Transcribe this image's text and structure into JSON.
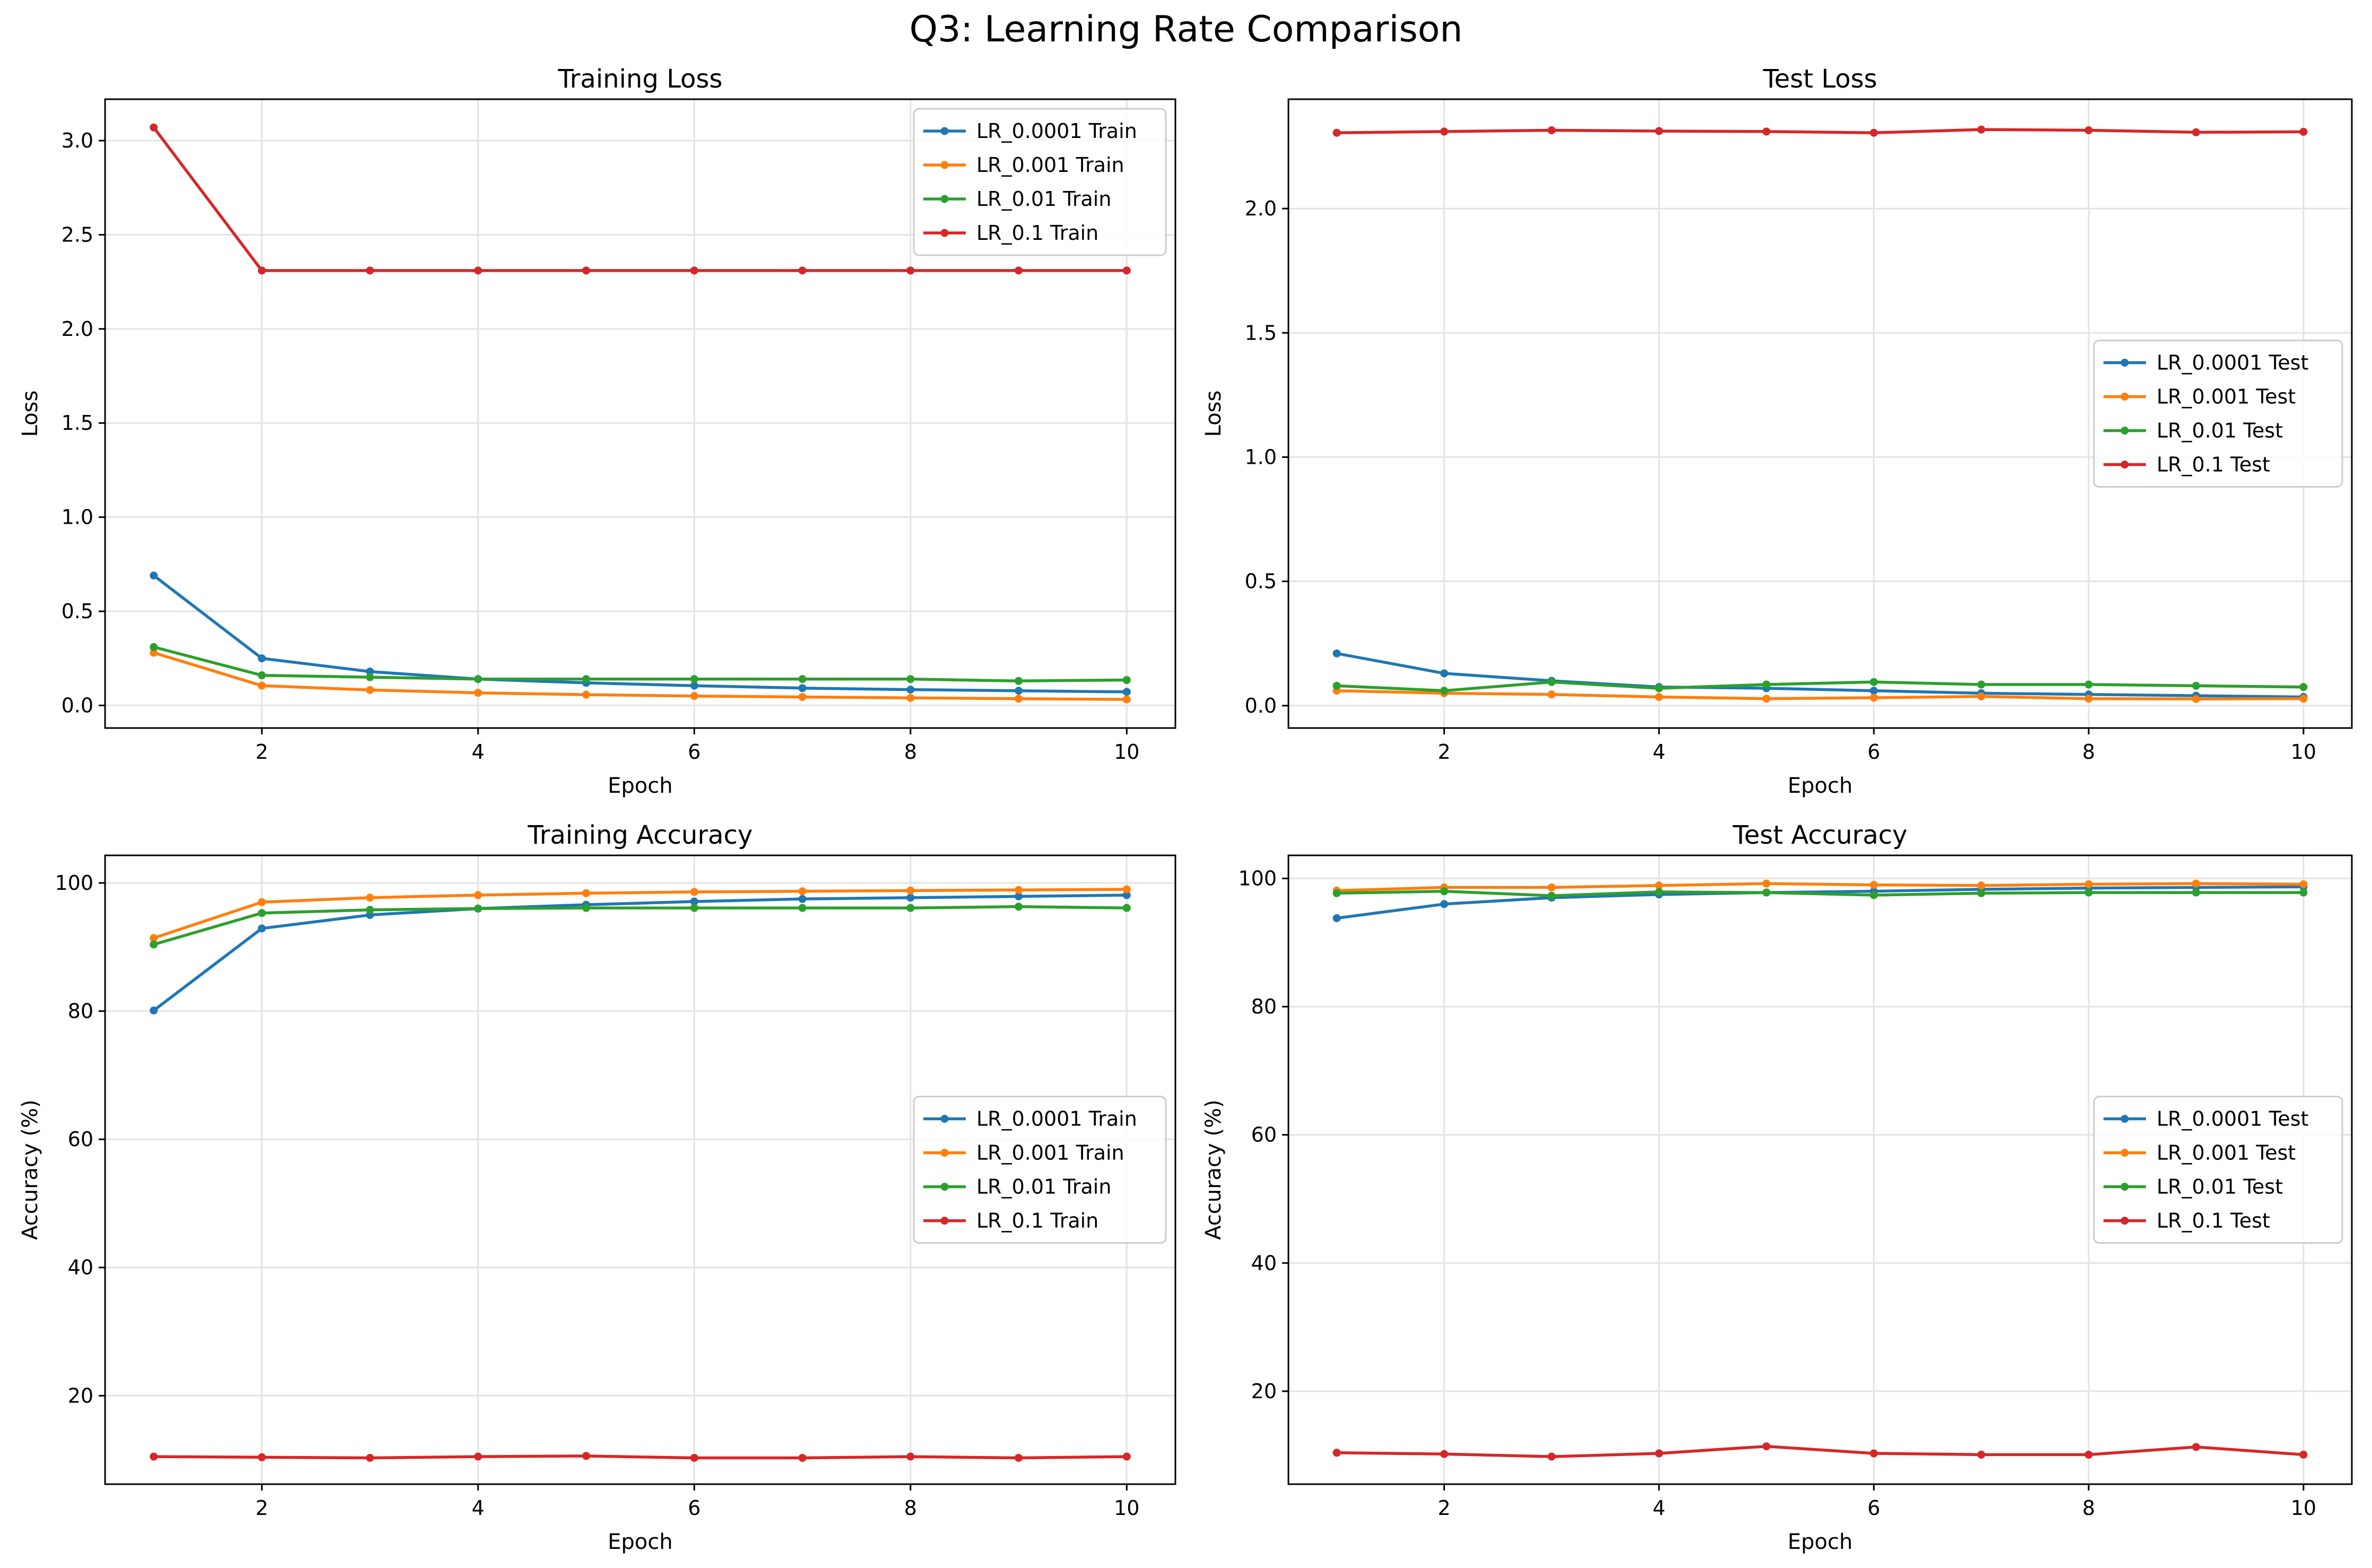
{
  "figure": {
    "title": "Q3: Learning Rate Comparison"
  },
  "colors": {
    "blue": "#1f77b4",
    "orange": "#ff7f0e",
    "green": "#2ca02c",
    "red": "#d62728"
  },
  "chart_data": [
    {
      "type": "line",
      "title": "Training Loss",
      "xlabel": "Epoch",
      "ylabel": "Loss",
      "xlim": [
        0.55,
        10.45
      ],
      "ylim": [
        -0.12,
        3.22
      ],
      "xticks": [
        2,
        4,
        6,
        8,
        10
      ],
      "yticks": [
        0.0,
        0.5,
        1.0,
        1.5,
        2.0,
        2.5,
        3.0
      ],
      "ytick_labels": [
        "0.0",
        "0.5",
        "1.0",
        "1.5",
        "2.0",
        "2.5",
        "3.0"
      ],
      "grid": true,
      "legend_position": "top-right",
      "x": [
        1,
        2,
        3,
        4,
        5,
        6,
        7,
        8,
        9,
        10
      ],
      "series": [
        {
          "name": "LR_0.0001 Train",
          "color": "#1f77b4",
          "values": [
            0.69,
            0.25,
            0.18,
            0.14,
            0.12,
            0.105,
            0.092,
            0.084,
            0.078,
            0.072
          ]
        },
        {
          "name": "LR_0.001 Train",
          "color": "#ff7f0e",
          "values": [
            0.28,
            0.105,
            0.082,
            0.067,
            0.057,
            0.05,
            0.045,
            0.04,
            0.036,
            0.032
          ]
        },
        {
          "name": "LR_0.01 Train",
          "color": "#2ca02c",
          "values": [
            0.31,
            0.16,
            0.15,
            0.14,
            0.14,
            0.14,
            0.14,
            0.14,
            0.13,
            0.135
          ]
        },
        {
          "name": "LR_0.1 Train",
          "color": "#d62728",
          "values": [
            3.07,
            2.31,
            2.31,
            2.31,
            2.31,
            2.31,
            2.31,
            2.31,
            2.31,
            2.31
          ]
        }
      ]
    },
    {
      "type": "line",
      "title": "Test Loss",
      "xlabel": "Epoch",
      "ylabel": "Loss",
      "xlim": [
        0.55,
        10.45
      ],
      "ylim": [
        -0.09,
        2.44
      ],
      "xticks": [
        2,
        4,
        6,
        8,
        10
      ],
      "yticks": [
        0.0,
        0.5,
        1.0,
        1.5,
        2.0
      ],
      "ytick_labels": [
        "0.0",
        "0.5",
        "1.0",
        "1.5",
        "2.0"
      ],
      "grid": true,
      "legend_position": "center-right",
      "x": [
        1,
        2,
        3,
        4,
        5,
        6,
        7,
        8,
        9,
        10
      ],
      "series": [
        {
          "name": "LR_0.0001 Test",
          "color": "#1f77b4",
          "values": [
            0.21,
            0.13,
            0.1,
            0.075,
            0.07,
            0.06,
            0.05,
            0.045,
            0.04,
            0.035
          ]
        },
        {
          "name": "LR_0.001 Test",
          "color": "#ff7f0e",
          "values": [
            0.06,
            0.05,
            0.045,
            0.035,
            0.028,
            0.032,
            0.037,
            0.028,
            0.027,
            0.028
          ]
        },
        {
          "name": "LR_0.01 Test",
          "color": "#2ca02c",
          "values": [
            0.08,
            0.06,
            0.095,
            0.07,
            0.085,
            0.095,
            0.085,
            0.085,
            0.08,
            0.075
          ]
        },
        {
          "name": "LR_0.1 Test",
          "color": "#d62728",
          "values": [
            2.305,
            2.31,
            2.315,
            2.312,
            2.31,
            2.305,
            2.318,
            2.315,
            2.307,
            2.309
          ]
        }
      ]
    },
    {
      "type": "line",
      "title": "Training Accuracy",
      "xlabel": "Epoch",
      "ylabel": "Accuracy (%)",
      "xlim": [
        0.55,
        10.45
      ],
      "ylim": [
        6.2,
        104.3
      ],
      "xticks": [
        2,
        4,
        6,
        8,
        10
      ],
      "yticks": [
        20,
        40,
        60,
        80,
        100
      ],
      "ytick_labels": [
        "20",
        "40",
        "60",
        "80",
        "100"
      ],
      "grid": true,
      "legend_position": "center-right",
      "x": [
        1,
        2,
        3,
        4,
        5,
        6,
        7,
        8,
        9,
        10
      ],
      "series": [
        {
          "name": "LR_0.0001 Train",
          "color": "#1f77b4",
          "values": [
            80.1,
            92.9,
            95.0,
            96.0,
            96.6,
            97.1,
            97.5,
            97.7,
            97.9,
            98.1
          ]
        },
        {
          "name": "LR_0.001 Train",
          "color": "#ff7f0e",
          "values": [
            91.4,
            97.0,
            97.7,
            98.1,
            98.4,
            98.6,
            98.7,
            98.8,
            98.9,
            99.0
          ]
        },
        {
          "name": "LR_0.01 Train",
          "color": "#2ca02c",
          "values": [
            90.4,
            95.3,
            95.8,
            96.0,
            96.1,
            96.1,
            96.1,
            96.1,
            96.3,
            96.1
          ]
        },
        {
          "name": "LR_0.1 Train",
          "color": "#d62728",
          "values": [
            10.5,
            10.4,
            10.3,
            10.5,
            10.6,
            10.3,
            10.3,
            10.5,
            10.3,
            10.5
          ]
        }
      ]
    },
    {
      "type": "line",
      "title": "Test Accuracy",
      "xlabel": "Epoch",
      "ylabel": "Accuracy (%)",
      "xlim": [
        0.55,
        10.45
      ],
      "ylim": [
        5.5,
        103.6
      ],
      "xticks": [
        2,
        4,
        6,
        8,
        10
      ],
      "yticks": [
        20,
        40,
        60,
        80,
        100
      ],
      "ytick_labels": [
        "20",
        "40",
        "60",
        "80",
        "100"
      ],
      "grid": true,
      "legend_position": "center-right",
      "x": [
        1,
        2,
        3,
        4,
        5,
        6,
        7,
        8,
        9,
        10
      ],
      "series": [
        {
          "name": "LR_0.0001 Test",
          "color": "#1f77b4",
          "values": [
            93.8,
            96.0,
            97.0,
            97.5,
            97.8,
            98.0,
            98.3,
            98.5,
            98.6,
            98.7
          ]
        },
        {
          "name": "LR_0.001 Test",
          "color": "#ff7f0e",
          "values": [
            98.1,
            98.6,
            98.6,
            98.9,
            99.2,
            99.0,
            98.9,
            99.1,
            99.2,
            99.1
          ]
        },
        {
          "name": "LR_0.01 Test",
          "color": "#2ca02c",
          "values": [
            97.7,
            98.0,
            97.3,
            97.9,
            97.8,
            97.4,
            97.7,
            97.8,
            97.8,
            97.8
          ]
        },
        {
          "name": "LR_0.1 Test",
          "color": "#d62728",
          "values": [
            10.4,
            10.2,
            9.8,
            10.3,
            11.4,
            10.3,
            10.1,
            10.1,
            11.3,
            10.1
          ]
        }
      ]
    }
  ]
}
